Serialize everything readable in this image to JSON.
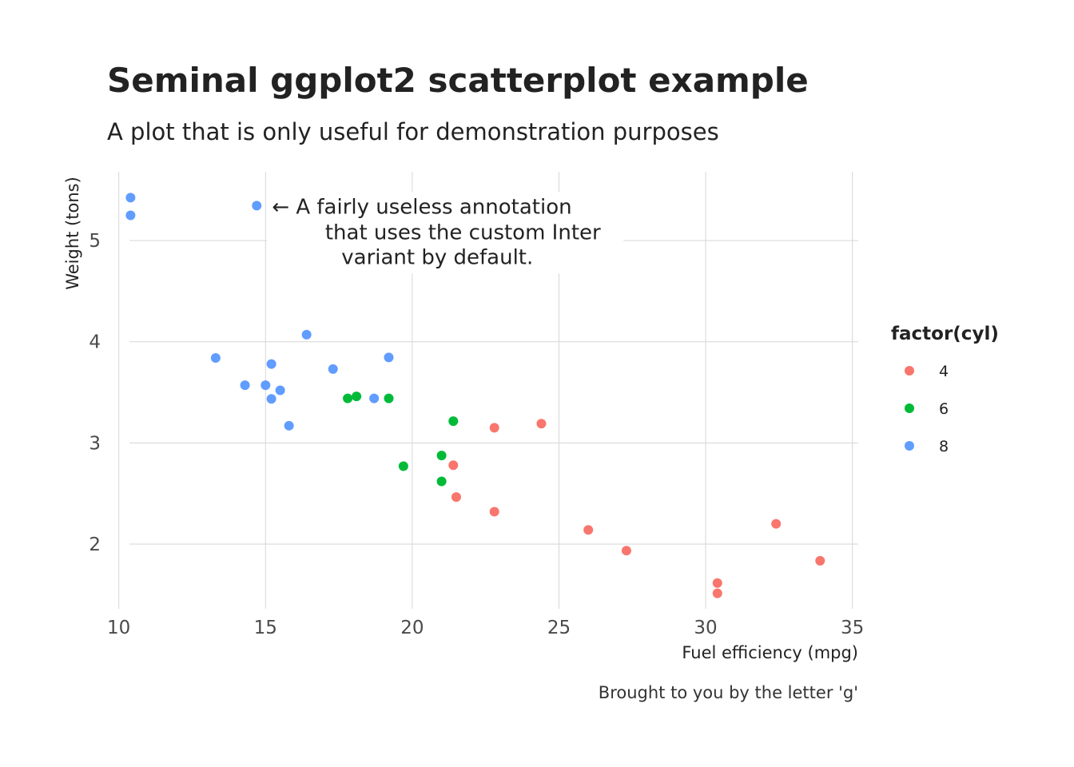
{
  "chart_data": {
    "type": "scatter",
    "title": "Seminal ggplot2 scatterplot example",
    "subtitle": "A plot that is only useful for demonstration purposes",
    "xlabel": "Fuel efficiency (mpg)",
    "ylabel": "Weight (tons)",
    "caption": "Brought to you by the letter 'g'",
    "xlim": [
      9.6,
      35.2
    ],
    "ylim": [
      1.36,
      5.68
    ],
    "xticks": [
      10,
      15,
      20,
      25,
      30,
      35
    ],
    "yticks": [
      2,
      3,
      4,
      5
    ],
    "grid": true,
    "legend": {
      "title": "factor(cyl)",
      "position": "right",
      "entries": [
        {
          "label": "4",
          "color": "#F8766D"
        },
        {
          "label": "6",
          "color": "#00BA38"
        },
        {
          "label": "8",
          "color": "#619CFF"
        }
      ]
    },
    "series": [
      {
        "name": "4",
        "color": "#F8766D",
        "points": [
          [
            22.8,
            2.32
          ],
          [
            24.4,
            3.19
          ],
          [
            22.8,
            3.15
          ],
          [
            32.4,
            2.2
          ],
          [
            30.4,
            1.615
          ],
          [
            33.9,
            1.835
          ],
          [
            21.5,
            2.465
          ],
          [
            27.3,
            1.935
          ],
          [
            26.0,
            2.14
          ],
          [
            30.4,
            1.513
          ],
          [
            21.4,
            2.78
          ]
        ]
      },
      {
        "name": "6",
        "color": "#00BA38",
        "points": [
          [
            21.0,
            2.62
          ],
          [
            21.0,
            2.875
          ],
          [
            21.4,
            3.215
          ],
          [
            18.1,
            3.46
          ],
          [
            19.2,
            3.44
          ],
          [
            17.8,
            3.44
          ],
          [
            19.7,
            2.77
          ]
        ]
      },
      {
        "name": "8",
        "color": "#619CFF",
        "points": [
          [
            18.7,
            3.44
          ],
          [
            14.3,
            3.57
          ],
          [
            16.4,
            4.07
          ],
          [
            17.3,
            3.73
          ],
          [
            15.2,
            3.78
          ],
          [
            10.4,
            5.25
          ],
          [
            10.4,
            5.424
          ],
          [
            14.7,
            5.345
          ],
          [
            15.5,
            3.52
          ],
          [
            15.2,
            3.435
          ],
          [
            13.3,
            3.84
          ],
          [
            19.2,
            3.845
          ],
          [
            15.8,
            3.17
          ],
          [
            15.0,
            3.57
          ]
        ]
      }
    ],
    "annotation": {
      "text_lines": [
        "← A fairly useless annotation",
        "that uses the custom Inter",
        "variant by default."
      ],
      "x": 15.0,
      "y": 5.345
    }
  }
}
